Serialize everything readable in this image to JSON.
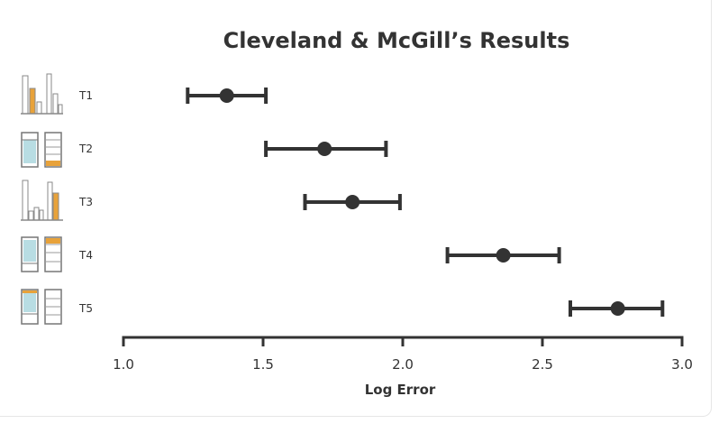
{
  "chart_data": {
    "type": "scatter",
    "title": "Cleveland & McGill’s  Results",
    "xlabel": "Log Error",
    "xlim": [
      1.0,
      3.0
    ],
    "xticks": [
      "1.0",
      "1.5",
      "2.0",
      "2.5",
      "3.0"
    ],
    "xtick_values": [
      1.0,
      1.5,
      2.0,
      2.5,
      3.0
    ],
    "grid": false,
    "error_bars": true,
    "categories": [
      "T1",
      "T2",
      "T3",
      "T4",
      "T5"
    ],
    "values": [
      1.37,
      1.72,
      1.82,
      2.36,
      2.77
    ],
    "ci_low": [
      1.23,
      1.51,
      1.65,
      2.16,
      2.6
    ],
    "ci_high": [
      1.51,
      1.94,
      1.99,
      2.56,
      2.93
    ],
    "colors": {
      "mark": "#333333",
      "icon_fill": "#b8dde3",
      "icon_accent": "#e8a23a",
      "icon_outline": "#888888"
    }
  }
}
